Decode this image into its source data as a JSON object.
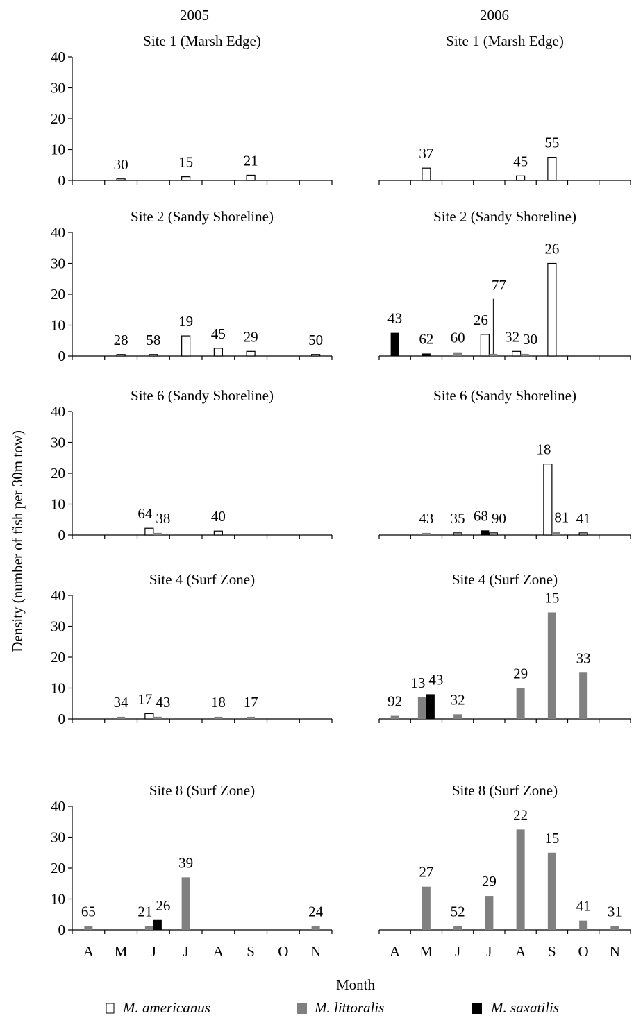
{
  "columns": [
    "2005",
    "2006"
  ],
  "ylabel": "Density (number of fish per 30m tow)",
  "xlabel": "Month",
  "months": [
    "A",
    "M",
    "J",
    "J",
    "A",
    "S",
    "O",
    "N"
  ],
  "legend": [
    {
      "key": "americanus",
      "label": "M. americanus",
      "fill": "#ffffff"
    },
    {
      "key": "littoralis",
      "label": "M. littoralis",
      "fill": "#808080"
    },
    {
      "key": "saxatilis",
      "label": "M. saxatilis",
      "fill": "#000000"
    }
  ],
  "colors": {
    "americanus": "#ffffff",
    "littoralis": "#808080",
    "saxatilis": "#000000",
    "axis": "#000000"
  },
  "chart_data": [
    {
      "type": "bar",
      "title": "Site 1 (Marsh Edge)",
      "year": "2005",
      "ylim": [
        0,
        40
      ],
      "yticks": [
        0,
        10,
        20,
        30,
        40
      ],
      "categories": [
        "A",
        "M",
        "J",
        "J",
        "A",
        "S",
        "O",
        "N"
      ],
      "bars": [
        {
          "species": "americanus",
          "month": 1,
          "value": 0.5,
          "label": "30"
        },
        {
          "species": "americanus",
          "month": 3,
          "value": 1.2,
          "label": "15"
        },
        {
          "species": "americanus",
          "month": 5,
          "value": 1.7,
          "label": "21"
        }
      ]
    },
    {
      "type": "bar",
      "title": "Site 1 (Marsh Edge)",
      "year": "2006",
      "ylim": [
        0,
        40
      ],
      "yticks": [
        0,
        10,
        20,
        30,
        40
      ],
      "categories": [
        "A",
        "M",
        "J",
        "J",
        "A",
        "S",
        "O",
        "N"
      ],
      "bars": [
        {
          "species": "americanus",
          "month": 1,
          "value": 4,
          "label": "37"
        },
        {
          "species": "americanus",
          "month": 4,
          "value": 1.5,
          "label": "45"
        },
        {
          "species": "americanus",
          "month": 5,
          "value": 7.5,
          "label": "55"
        }
      ]
    },
    {
      "type": "bar",
      "title": "Site 2 (Sandy Shoreline)",
      "year": "2005",
      "ylim": [
        0,
        40
      ],
      "yticks": [
        0,
        10,
        20,
        30,
        40
      ],
      "categories": [
        "A",
        "M",
        "J",
        "J",
        "A",
        "S",
        "O",
        "N"
      ],
      "bars": [
        {
          "species": "americanus",
          "month": 1,
          "value": 0.5,
          "label": "28"
        },
        {
          "species": "americanus",
          "month": 2,
          "value": 0.5,
          "label": "58"
        },
        {
          "species": "americanus",
          "month": 3,
          "value": 6.5,
          "label": "19"
        },
        {
          "species": "americanus",
          "month": 4,
          "value": 2.5,
          "label": "45"
        },
        {
          "species": "americanus",
          "month": 5,
          "value": 1.5,
          "label": "29"
        },
        {
          "species": "americanus",
          "month": 7,
          "value": 0.5,
          "label": "50"
        }
      ]
    },
    {
      "type": "bar",
      "title": "Site 2 (Sandy Shoreline)",
      "year": "2006",
      "ylim": [
        0,
        40
      ],
      "yticks": [
        0,
        10,
        20,
        30,
        40
      ],
      "categories": [
        "A",
        "M",
        "J",
        "J",
        "A",
        "S",
        "O",
        "N"
      ],
      "bars": [
        {
          "species": "saxatilis",
          "month": 0,
          "value": 7.5,
          "label": "43"
        },
        {
          "species": "saxatilis",
          "month": 1,
          "value": 0.8,
          "label": "62"
        },
        {
          "species": "littoralis",
          "month": 2,
          "value": 1.2,
          "label": "60"
        },
        {
          "species": "americanus",
          "month": 3,
          "value": 7,
          "label": "26"
        },
        {
          "species": "littoralis",
          "month": 3,
          "value": 0.7,
          "label": "77",
          "leader": true
        },
        {
          "species": "americanus",
          "month": 4,
          "value": 1.5,
          "label": "32"
        },
        {
          "species": "littoralis",
          "month": 4,
          "value": 0.7,
          "label": "30"
        },
        {
          "species": "americanus",
          "month": 5,
          "value": 30,
          "label": "26"
        }
      ]
    },
    {
      "type": "bar",
      "title": "Site 6 (Sandy Shoreline)",
      "year": "2005",
      "ylim": [
        0,
        40
      ],
      "yticks": [
        0,
        10,
        20,
        30,
        40
      ],
      "categories": [
        "A",
        "M",
        "J",
        "J",
        "A",
        "S",
        "O",
        "N"
      ],
      "bars": [
        {
          "species": "americanus",
          "month": 2,
          "value": 2.2,
          "label": "64"
        },
        {
          "species": "littoralis",
          "month": 2,
          "value": 0.7,
          "label": "38"
        },
        {
          "species": "americanus",
          "month": 4,
          "value": 1.3,
          "label": "40"
        }
      ]
    },
    {
      "type": "bar",
      "title": "Site 6 (Sandy Shoreline)",
      "year": "2006",
      "ylim": [
        0,
        40
      ],
      "yticks": [
        0,
        10,
        20,
        30,
        40
      ],
      "categories": [
        "A",
        "M",
        "J",
        "J",
        "A",
        "S",
        "O",
        "N"
      ],
      "bars": [
        {
          "species": "littoralis",
          "month": 1,
          "value": 0.7,
          "label": "43"
        },
        {
          "species": "americanus",
          "month": 2,
          "value": 0.7,
          "label": "35"
        },
        {
          "species": "saxatilis",
          "month": 3,
          "value": 1.5,
          "label": "68"
        },
        {
          "species": "americanus",
          "month": 3,
          "value": 0.7,
          "label": "90"
        },
        {
          "species": "americanus",
          "month": 5,
          "value": 23,
          "label": "18"
        },
        {
          "species": "littoralis",
          "month": 5,
          "value": 1,
          "label": "81"
        },
        {
          "species": "americanus",
          "month": 6,
          "value": 0.7,
          "label": "41"
        }
      ]
    },
    {
      "type": "bar",
      "title": "Site 4 (Surf Zone)",
      "year": "2005",
      "ylim": [
        0,
        40
      ],
      "yticks": [
        0,
        10,
        20,
        30,
        40
      ],
      "categories": [
        "A",
        "M",
        "J",
        "J",
        "A",
        "S",
        "O",
        "N"
      ],
      "bars": [
        {
          "species": "littoralis",
          "month": 1,
          "value": 0.7,
          "label": "34"
        },
        {
          "species": "americanus",
          "month": 2,
          "value": 1.7,
          "label": "17"
        },
        {
          "species": "littoralis",
          "month": 2,
          "value": 0.7,
          "label": "43"
        },
        {
          "species": "littoralis",
          "month": 4,
          "value": 0.7,
          "label": "18"
        },
        {
          "species": "littoralis",
          "month": 5,
          "value": 0.7,
          "label": "17"
        }
      ]
    },
    {
      "type": "bar",
      "title": "Site 4 (Surf Zone)",
      "year": "2006",
      "ylim": [
        0,
        40
      ],
      "yticks": [
        0,
        10,
        20,
        30,
        40
      ],
      "categories": [
        "A",
        "M",
        "J",
        "J",
        "A",
        "S",
        "O",
        "N"
      ],
      "bars": [
        {
          "species": "littoralis",
          "month": 0,
          "value": 1,
          "label": "92"
        },
        {
          "species": "littoralis",
          "month": 1,
          "value": 7,
          "label": "13"
        },
        {
          "species": "saxatilis",
          "month": 1,
          "value": 8,
          "label": "43"
        },
        {
          "species": "littoralis",
          "month": 2,
          "value": 1.5,
          "label": "32"
        },
        {
          "species": "littoralis",
          "month": 4,
          "value": 10,
          "label": "29"
        },
        {
          "species": "littoralis",
          "month": 5,
          "value": 34.5,
          "label": "15"
        },
        {
          "species": "littoralis",
          "month": 6,
          "value": 15,
          "label": "33"
        }
      ]
    },
    {
      "type": "bar",
      "title": "Site 8 (Surf Zone)",
      "year": "2005",
      "ylim": [
        0,
        40
      ],
      "yticks": [
        0,
        10,
        20,
        30,
        40
      ],
      "categories": [
        "A",
        "M",
        "J",
        "J",
        "A",
        "S",
        "O",
        "N"
      ],
      "bars": [
        {
          "species": "littoralis",
          "month": 0,
          "value": 1.2,
          "label": "65"
        },
        {
          "species": "littoralis",
          "month": 2,
          "value": 1.2,
          "label": "21"
        },
        {
          "species": "saxatilis",
          "month": 2,
          "value": 3.2,
          "label": "26"
        },
        {
          "species": "littoralis",
          "month": 3,
          "value": 17,
          "label": "39"
        },
        {
          "species": "littoralis",
          "month": 7,
          "value": 1.2,
          "label": "24"
        }
      ]
    },
    {
      "type": "bar",
      "title": "Site 8 (Surf Zone)",
      "year": "2006",
      "ylim": [
        0,
        40
      ],
      "yticks": [
        0,
        10,
        20,
        30,
        40
      ],
      "categories": [
        "A",
        "M",
        "J",
        "J",
        "A",
        "S",
        "O",
        "N"
      ],
      "bars": [
        {
          "species": "littoralis",
          "month": 1,
          "value": 14,
          "label": "27"
        },
        {
          "species": "littoralis",
          "month": 2,
          "value": 1.2,
          "label": "52"
        },
        {
          "species": "littoralis",
          "month": 3,
          "value": 11,
          "label": "29"
        },
        {
          "species": "littoralis",
          "month": 4,
          "value": 32.5,
          "label": "22"
        },
        {
          "species": "littoralis",
          "month": 5,
          "value": 25,
          "label": "15"
        },
        {
          "species": "littoralis",
          "month": 6,
          "value": 3,
          "label": "41"
        },
        {
          "species": "littoralis",
          "month": 7,
          "value": 1.2,
          "label": "31"
        }
      ]
    }
  ]
}
